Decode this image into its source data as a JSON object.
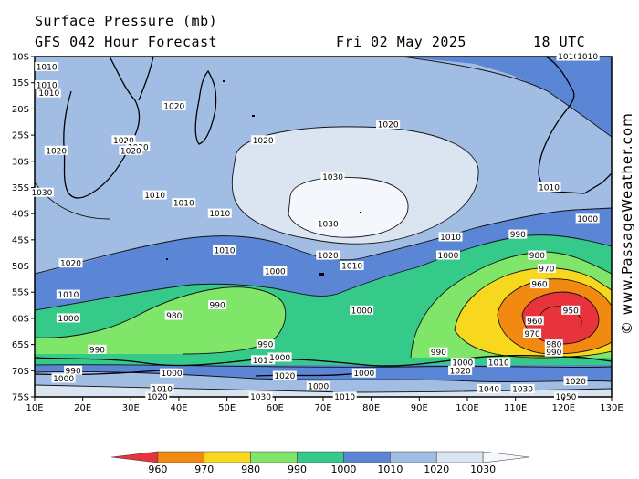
{
  "header": {
    "title": "Surface Pressure (mb)",
    "forecast": "GFS 042 Hour Forecast",
    "date": "Fri 02 May 2025",
    "time": "18 UTC"
  },
  "watermark": "© www.PassageWeather.com",
  "map": {
    "lat_labels": [
      "10S",
      "15S",
      "20S",
      "25S",
      "30S",
      "35S",
      "40S",
      "45S",
      "50S",
      "55S",
      "60S",
      "65S",
      "70S",
      "75S"
    ],
    "lon_labels": [
      "10E",
      "20E",
      "30E",
      "40E",
      "50E",
      "60E",
      "70E",
      "80E",
      "90E",
      "100E",
      "110E",
      "120E",
      "130E"
    ],
    "lat_range": [
      -10,
      -75
    ],
    "lon_range": [
      10,
      130
    ],
    "contour_labels": [
      {
        "text": "1010",
        "lon": 12.5,
        "lat": -12.0
      },
      {
        "text": "1010",
        "lon": 12.5,
        "lat": -15.5
      },
      {
        "text": "1010",
        "lon": 13.0,
        "lat": -17.0
      },
      {
        "text": "1020",
        "lon": 14.5,
        "lat": -28.0
      },
      {
        "text": "1020",
        "lon": 39.0,
        "lat": -19.5
      },
      {
        "text": "1020",
        "lon": 28.5,
        "lat": -26.0
      },
      {
        "text": "1020",
        "lon": 31.5,
        "lat": -27.3
      },
      {
        "text": "1020",
        "lon": 30.0,
        "lat": -28.0
      },
      {
        "text": "1020",
        "lon": 57.5,
        "lat": -26.0
      },
      {
        "text": "1020",
        "lon": 83.5,
        "lat": -23.0
      },
      {
        "text": "1030",
        "lon": 72.0,
        "lat": -33.0
      },
      {
        "text": "1030",
        "lon": 71.0,
        "lat": -42.0
      },
      {
        "text": "1030",
        "lon": 11.5,
        "lat": -36.0
      },
      {
        "text": "1010",
        "lon": 35.0,
        "lat": -36.5
      },
      {
        "text": "1010",
        "lon": 41.0,
        "lat": -38.0
      },
      {
        "text": "1010",
        "lon": 48.5,
        "lat": -40.0
      },
      {
        "text": "1010",
        "lon": 49.5,
        "lat": -47.0
      },
      {
        "text": "1020",
        "lon": 71.0,
        "lat": -48.0
      },
      {
        "text": "1010",
        "lon": 76.0,
        "lat": -50.0
      },
      {
        "text": "1010",
        "lon": 96.5,
        "lat": -44.5
      },
      {
        "text": "1000",
        "lon": 96.0,
        "lat": -48.0
      },
      {
        "text": "990",
        "lon": 110.5,
        "lat": -44.0
      },
      {
        "text": "1000",
        "lon": 125.0,
        "lat": -41.0
      },
      {
        "text": "1010",
        "lon": 117.0,
        "lat": -35.0
      },
      {
        "text": "1020",
        "lon": 17.5,
        "lat": -49.5
      },
      {
        "text": "1010",
        "lon": 17.0,
        "lat": -55.5
      },
      {
        "text": "1000",
        "lon": 60.0,
        "lat": -51.0
      },
      {
        "text": "990",
        "lon": 48.0,
        "lat": -57.5
      },
      {
        "text": "980",
        "lon": 39.0,
        "lat": -59.5
      },
      {
        "text": "1000",
        "lon": 17.0,
        "lat": -60.0
      },
      {
        "text": "1000",
        "lon": 78.0,
        "lat": -58.5
      },
      {
        "text": "980",
        "lon": 114.5,
        "lat": -48.0
      },
      {
        "text": "970",
        "lon": 116.5,
        "lat": -50.5
      },
      {
        "text": "960",
        "lon": 115.0,
        "lat": -53.5
      },
      {
        "text": "950",
        "lon": 121.5,
        "lat": -58.5
      },
      {
        "text": "960",
        "lon": 114.0,
        "lat": -60.5
      },
      {
        "text": "970",
        "lon": 113.5,
        "lat": -63.0
      },
      {
        "text": "980",
        "lon": 118.0,
        "lat": -65.0
      },
      {
        "text": "990",
        "lon": 118.0,
        "lat": -66.5
      },
      {
        "text": "990",
        "lon": 23.0,
        "lat": -66.0
      },
      {
        "text": "990",
        "lon": 18.0,
        "lat": -70.0
      },
      {
        "text": "990",
        "lon": 58.0,
        "lat": -65.0
      },
      {
        "text": "990",
        "lon": 94.0,
        "lat": -66.5
      },
      {
        "text": "1010",
        "lon": 57.5,
        "lat": -68.0
      },
      {
        "text": "1000",
        "lon": 61.0,
        "lat": -67.5
      },
      {
        "text": "1000",
        "lon": 38.5,
        "lat": -70.5
      },
      {
        "text": "1020",
        "lon": 62.0,
        "lat": -71.0
      },
      {
        "text": "1000",
        "lon": 69.0,
        "lat": -73.0
      },
      {
        "text": "1000",
        "lon": 78.5,
        "lat": -70.5
      },
      {
        "text": "1000",
        "lon": 99.0,
        "lat": -68.5
      },
      {
        "text": "1010",
        "lon": 106.5,
        "lat": -68.5
      },
      {
        "text": "1020",
        "lon": 98.5,
        "lat": -70.0
      },
      {
        "text": "1030",
        "lon": 111.5,
        "lat": -73.5
      },
      {
        "text": "1040",
        "lon": 104.5,
        "lat": -73.5
      },
      {
        "text": "1020",
        "lon": 122.5,
        "lat": -72.0
      },
      {
        "text": "1050",
        "lon": 120.5,
        "lat": -75.0
      },
      {
        "text": "1010",
        "lon": 36.5,
        "lat": -73.5
      },
      {
        "text": "1020",
        "lon": 35.5,
        "lat": -75.0
      },
      {
        "text": "1030",
        "lon": 57.0,
        "lat": -75.0
      },
      {
        "text": "1010",
        "lon": 74.5,
        "lat": -75.0
      },
      {
        "text": "1000",
        "lon": 16.0,
        "lat": -71.5
      },
      {
        "text": "1010",
        "lon": 121.0,
        "lat": -10.0
      },
      {
        "text": "1010",
        "lon": 125.0,
        "lat": -10.0
      }
    ]
  },
  "legend": {
    "labels": [
      "960",
      "970",
      "980",
      "990",
      "1000",
      "1010",
      "1020",
      "1030"
    ],
    "colors": [
      "#e8333c",
      "#f28a12",
      "#f7d81f",
      "#7fe66a",
      "#35c98a",
      "#5b86d6",
      "#a2bde3",
      "#dbe5f2",
      "#f4f7fb"
    ]
  }
}
